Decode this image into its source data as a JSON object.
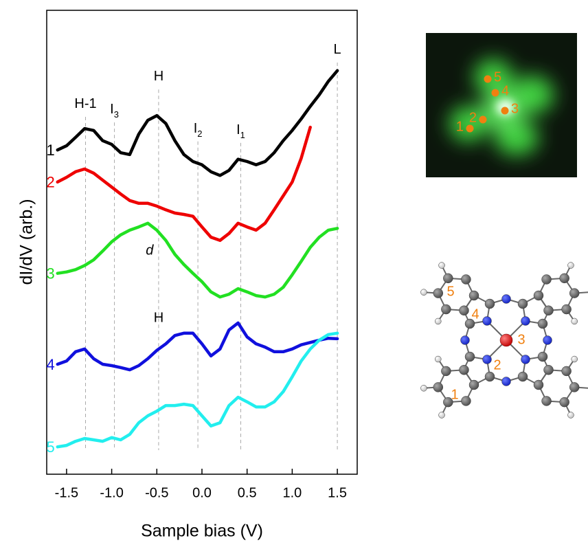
{
  "chart_data": {
    "type": "line",
    "x_label": "Sample bias (V)",
    "y_label": "dI/dV (arb.)",
    "xlim": [
      -1.72,
      1.72
    ],
    "ylim": [
      0,
      100
    ],
    "xticks": [
      -1.5,
      {
        "value": -1.0,
        "label": "-1.0"
      },
      -0.5,
      {
        "value": 0.0,
        "label": "0.0"
      },
      0.5,
      {
        "value": 1.0,
        "label": "1.0"
      },
      1.5
    ],
    "x": [
      -1.6,
      -1.5,
      -1.4,
      -1.3,
      -1.2,
      -1.1,
      -1.0,
      -0.9,
      -0.8,
      -0.7,
      -0.6,
      -0.5,
      -0.4,
      -0.3,
      -0.2,
      -0.1,
      0.0,
      0.1,
      0.2,
      0.3,
      0.4,
      0.5,
      0.6,
      0.7,
      0.8,
      0.9,
      1.0,
      1.1,
      1.2,
      1.3,
      1.4,
      1.5
    ],
    "series": [
      {
        "name": "1",
        "color": "#000000",
        "values": [
          69.9,
          70.8,
          72.6,
          74.5,
          74.1,
          71.9,
          71.1,
          69.3,
          68.9,
          73.3,
          76.3,
          77.3,
          75.6,
          71.9,
          68.9,
          67.4,
          66.7,
          65.2,
          64.4,
          65.5,
          67.9,
          67.4,
          66.7,
          67.4,
          69.3,
          71.9,
          74.1,
          76.6,
          79.3,
          81.8,
          84.7,
          87.0
        ]
      },
      {
        "name": "2",
        "color": "#ee0000",
        "values": [
          63.0,
          64.0,
          65.2,
          65.8,
          64.9,
          63.4,
          61.9,
          60.4,
          59.0,
          58.4,
          58.4,
          57.8,
          57.0,
          56.3,
          56.0,
          55.6,
          53.3,
          51.1,
          50.4,
          51.9,
          54.1,
          53.3,
          52.6,
          54.1,
          57.0,
          60.0,
          63.0,
          68.1,
          74.8,
          null,
          null,
          null
        ]
      },
      {
        "name": "3",
        "color": "#22e022",
        "values": [
          43.3,
          43.6,
          44.1,
          45.0,
          46.2,
          48.1,
          50.1,
          51.6,
          52.6,
          53.3,
          54.1,
          52.6,
          50.4,
          47.4,
          45.2,
          43.3,
          41.5,
          39.3,
          38.2,
          38.8,
          40.0,
          39.3,
          38.5,
          38.2,
          38.8,
          40.3,
          43.0,
          45.9,
          48.9,
          51.1,
          52.6,
          53.0
        ]
      },
      {
        "name": "4",
        "color": "#1010dd",
        "values": [
          23.7,
          24.4,
          26.4,
          27.0,
          24.9,
          23.7,
          23.4,
          23.0,
          22.5,
          23.4,
          24.9,
          26.7,
          28.1,
          29.9,
          30.4,
          30.4,
          28.1,
          25.5,
          27.0,
          31.1,
          32.6,
          29.6,
          28.1,
          27.4,
          26.4,
          26.4,
          27.0,
          27.9,
          28.4,
          28.9,
          29.3,
          29.2
        ]
      },
      {
        "name": "5",
        "color": "#22eeee",
        "values": [
          5.9,
          6.2,
          7.1,
          7.7,
          7.4,
          7.1,
          7.9,
          7.4,
          8.6,
          11.1,
          12.6,
          13.6,
          14.8,
          14.8,
          15.1,
          14.8,
          12.6,
          10.4,
          11.1,
          14.8,
          16.6,
          15.6,
          14.5,
          14.5,
          15.6,
          17.8,
          21.0,
          24.4,
          27.0,
          28.9,
          30.1,
          30.4
        ]
      }
    ],
    "peaks": [
      {
        "text": "H-1",
        "x": -1.29,
        "y": 79.7
      },
      {
        "text": "I",
        "subscript": "3",
        "x": -0.97,
        "y": 78.5
      },
      {
        "text": "H",
        "x": -0.48,
        "y": 85.6
      },
      {
        "text": "I",
        "subscript": "2",
        "x": -0.045,
        "y": 74.4
      },
      {
        "text": "I",
        "subscript": "1",
        "x": 0.43,
        "y": 74.1
      },
      {
        "text": "L",
        "x": 1.5,
        "y": 91.4
      }
    ],
    "annotations": [
      {
        "text": "d",
        "x": -0.58,
        "y": 48.1
      },
      {
        "text": "H",
        "x": -0.48,
        "y": 33.6
      }
    ]
  },
  "stm_image": {
    "site_labels": [
      "1",
      "2",
      "3",
      "4",
      "5"
    ]
  },
  "molecule": {
    "site_labels": [
      "1",
      "2",
      "3",
      "4",
      "5"
    ]
  }
}
